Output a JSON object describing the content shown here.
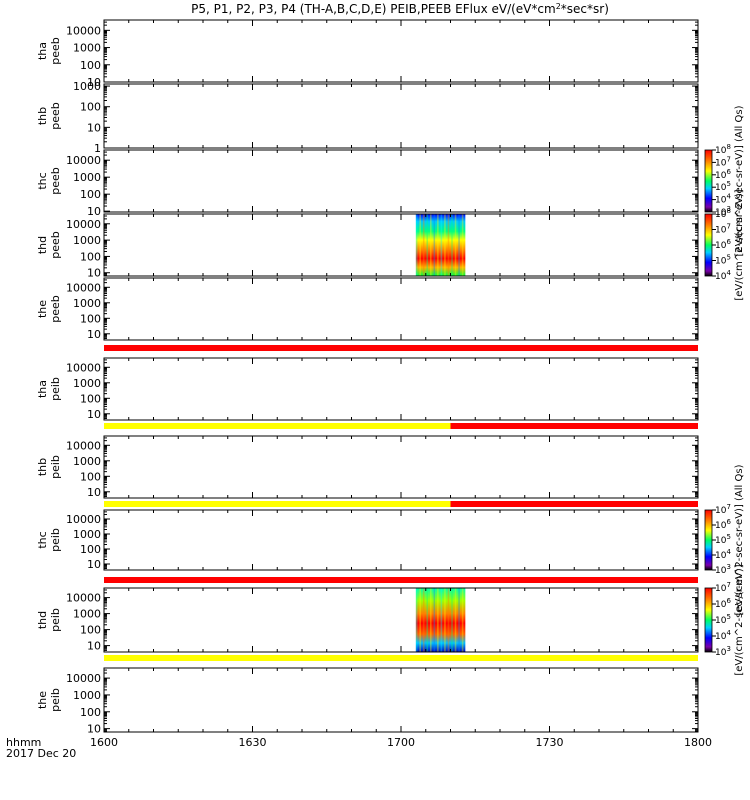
{
  "title_html_parts": {
    "main": "P5, P1, P2, P3, P4 (TH-A,B,C,D,E) PEIB,PEEB EFlux eV/(eV*cm",
    "sup": "2",
    "tail": "*sec*sr)"
  },
  "time_axis": {
    "row_label": "hhmm",
    "date_label": "2017 Dec 20"
  },
  "chart_data": {
    "type": "heatmap",
    "title": "P5, P1, P2, P3, P4 (TH-A,B,C,D,E) PEIB,PEEB EFlux eV/(eV*cm^2*sec*sr)",
    "xlabel": "hhmm",
    "x_range_minutes": [
      0,
      120
    ],
    "x_ticks": [
      "1600",
      "1630",
      "1700",
      "1730",
      "1800"
    ],
    "panels": [
      {
        "probe": "tha",
        "product": "peeb",
        "ylabels": [
          "tha",
          "peeb"
        ],
        "yticks": [
          "10",
          "100",
          "1000",
          "10000"
        ],
        "yrange_exp": [
          1,
          4.6
        ],
        "data_start_min": null,
        "data_end_min": null,
        "flags": []
      },
      {
        "probe": "thb",
        "product": "peeb",
        "ylabels": [
          "thb",
          "peeb"
        ],
        "yticks": [
          "1",
          "10",
          "100",
          "1000"
        ],
        "yrange_exp": [
          0,
          3.1
        ],
        "data_start_min": null,
        "data_end_min": null,
        "flags": []
      },
      {
        "probe": "thc",
        "product": "peeb",
        "ylabels": [
          "thc",
          "peeb"
        ],
        "yticks": [
          "10",
          "100",
          "1000",
          "10000"
        ],
        "yrange_exp": [
          0.95,
          4.6
        ],
        "data_start_min": null,
        "data_end_min": null,
        "flags": []
      },
      {
        "probe": "thd",
        "product": "peeb",
        "ylabels": [
          "thd",
          "peeb"
        ],
        "yticks": [
          "10",
          "100",
          "1000",
          "10000"
        ],
        "yrange_exp": [
          0.8,
          4.6
        ],
        "data_start_min": 63,
        "data_end_min": 73,
        "flags": []
      },
      {
        "probe": "the",
        "product": "peeb",
        "ylabels": [
          "the",
          "peeb"
        ],
        "yticks": [
          "10",
          "100",
          "1000",
          "10000"
        ],
        "yrange_exp": [
          0.6,
          4.6
        ],
        "data_start_min": null,
        "data_end_min": null,
        "flags": [
          {
            "start_min": 0,
            "end_min": 120,
            "color": "#ff0000"
          }
        ]
      },
      {
        "probe": "tha",
        "product": "peib",
        "ylabels": [
          "tha",
          "peib"
        ],
        "yticks": [
          "10",
          "100",
          "1000",
          "10000"
        ],
        "yrange_exp": [
          0.6,
          4.6
        ],
        "data_start_min": null,
        "data_end_min": null,
        "flags": [
          {
            "start_min": 0,
            "end_min": 70,
            "color": "#ffff00"
          },
          {
            "start_min": 70,
            "end_min": 120,
            "color": "#ff0000"
          }
        ]
      },
      {
        "probe": "thb",
        "product": "peib",
        "ylabels": [
          "thb",
          "peib"
        ],
        "yticks": [
          "10",
          "100",
          "1000",
          "10000"
        ],
        "yrange_exp": [
          0.6,
          4.6
        ],
        "data_start_min": null,
        "data_end_min": null,
        "flags": [
          {
            "start_min": 0,
            "end_min": 70,
            "color": "#ffff00"
          },
          {
            "start_min": 70,
            "end_min": 120,
            "color": "#ff0000"
          }
        ]
      },
      {
        "probe": "thc",
        "product": "peib",
        "ylabels": [
          "thc",
          "peib"
        ],
        "yticks": [
          "10",
          "100",
          "1000",
          "10000"
        ],
        "yrange_exp": [
          0.6,
          4.6
        ],
        "data_start_min": null,
        "data_end_min": null,
        "flags": [
          {
            "start_min": 0,
            "end_min": 120,
            "color": "#ff0000"
          }
        ]
      },
      {
        "probe": "thd",
        "product": "peib",
        "ylabels": [
          "thd",
          "peib"
        ],
        "yticks": [
          "10",
          "100",
          "1000",
          "10000"
        ],
        "yrange_exp": [
          0.6,
          4.6
        ],
        "data_start_min": 63,
        "data_end_min": 73,
        "flags": [
          {
            "start_min": 0,
            "end_min": 120,
            "color": "#ffff00"
          }
        ]
      },
      {
        "probe": "the",
        "product": "peib",
        "ylabels": [
          "the",
          "peib"
        ],
        "yticks": [
          "10",
          "100",
          "1000",
          "10000"
        ],
        "yrange_exp": [
          0.8,
          4.6
        ],
        "data_start_min": null,
        "data_end_min": null,
        "flags": []
      }
    ],
    "colorbars": [
      {
        "for": "thc peeb",
        "ticks": [
          "10^3",
          "10^4",
          "10^5",
          "10^6",
          "10^7",
          "10^8"
        ],
        "label": "[eV/(cm^2-sec-sr-eV)] (All Qs)"
      },
      {
        "for": "thd peeb",
        "ticks": [
          "10^4",
          "10^5",
          "10^6",
          "10^7",
          "10^8"
        ],
        "label": "[eV/(cm^2-sec-sr-eV)]"
      },
      {
        "for": "thc peib",
        "ticks": [
          "10^3",
          "10^4",
          "10^5",
          "10^6",
          "10^7"
        ],
        "label": "[eV/(cm^2-sec-sr-eV)] (All Qs)"
      },
      {
        "for": "thd peib",
        "ticks": [
          "10^3",
          "10^4",
          "10^5",
          "10^6",
          "10^7"
        ],
        "label": "[eV/(cm^2-sec-sr-eV)]"
      }
    ]
  }
}
